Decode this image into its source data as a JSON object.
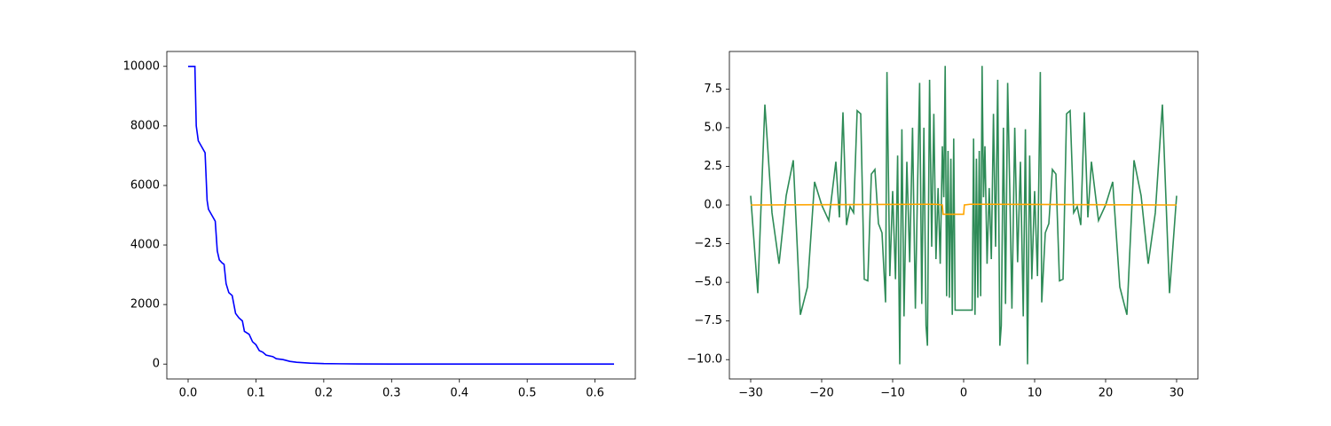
{
  "chart_data": [
    {
      "type": "line",
      "x": [
        0,
        0.01,
        0.012,
        0.015,
        0.02,
        0.025,
        0.028,
        0.03,
        0.035,
        0.04,
        0.043,
        0.046,
        0.05,
        0.053,
        0.056,
        0.06,
        0.065,
        0.07,
        0.075,
        0.08,
        0.083,
        0.09,
        0.095,
        0.1,
        0.105,
        0.11,
        0.115,
        0.125,
        0.13,
        0.14,
        0.15,
        0.16,
        0.18,
        0.2,
        0.25,
        0.3,
        0.4,
        0.5,
        0.628
      ],
      "series": [
        {
          "color": "#0000ff",
          "values": [
            10000,
            10000,
            8000,
            7500,
            7300,
            7100,
            5500,
            5200,
            5000,
            4800,
            3800,
            3500,
            3400,
            3350,
            2700,
            2400,
            2300,
            1700,
            1550,
            1450,
            1100,
            1000,
            750,
            650,
            450,
            400,
            300,
            250,
            180,
            150,
            90,
            60,
            30,
            15,
            5,
            2,
            0,
            0,
            0
          ]
        }
      ],
      "xlim": [
        -0.0314,
        0.6594
      ],
      "ylim": [
        -500,
        10500
      ],
      "xticks": [
        {
          "value": 0,
          "label": "0.0"
        },
        0.1,
        0.2,
        0.3,
        0.4,
        0.5,
        0.6
      ],
      "yticks": [
        0,
        2000,
        4000,
        6000,
        8000,
        10000
      ]
    },
    {
      "type": "line",
      "series": [
        {
          "color": "#2e8b57",
          "x": [
            -30,
            -29,
            -28,
            -27,
            -26,
            -25,
            -24,
            -23,
            -22,
            -21,
            -20,
            -19,
            -18,
            -17.5,
            -17,
            -16.5,
            -16,
            -15.5,
            -15,
            -14.5,
            -14,
            -13.5,
            -13,
            -12.5,
            -12,
            -11.5,
            -11,
            -10.8,
            -10.4,
            -10,
            -9.6,
            -9.3,
            -9,
            -8.7,
            -8.4,
            -8,
            -7.6,
            -7.2,
            -6.8,
            -6.5,
            -6.2,
            -5.9,
            -5.6,
            -5.3,
            -5.1,
            -4.8,
            -4.5,
            -4.2,
            -3.9,
            -3.6,
            -3.3,
            -3,
            -2.8,
            -2.6,
            -2.4,
            -2.2,
            -2,
            -1.8,
            -1.6,
            -1.4,
            -1.2,
            1.2,
            1.4,
            1.6,
            1.8,
            2,
            2.2,
            2.4,
            2.6,
            2.8,
            3,
            3.3,
            3.6,
            3.9,
            4.2,
            4.5,
            4.8,
            5.1,
            5.3,
            5.6,
            5.9,
            6.2,
            6.5,
            6.8,
            7.2,
            7.6,
            8,
            8.4,
            8.7,
            9,
            9.3,
            9.6,
            10,
            10.4,
            10.8,
            11,
            11.5,
            12,
            12.5,
            13,
            13.5,
            14,
            14.5,
            15,
            15.5,
            16,
            16.5,
            17,
            17.5,
            18,
            19,
            20,
            21,
            22,
            23,
            24,
            25,
            26,
            27,
            28,
            29,
            30
          ],
          "values": [
            0.6,
            -5.7,
            6.5,
            -0.5,
            -3.8,
            0.6,
            2.9,
            -7.1,
            -5.3,
            1.5,
            0,
            -1.0,
            2.8,
            -0.8,
            6.0,
            -1.3,
            -0.1,
            -0.5,
            6.1,
            5.9,
            -4.8,
            -4.9,
            2.0,
            2.3,
            -1.2,
            -1.8,
            -6.3,
            8.6,
            -4.6,
            0.9,
            -4.8,
            3.2,
            -10.3,
            4.9,
            -7.2,
            2.8,
            -3.7,
            5.0,
            -6.7,
            1.0,
            7.9,
            -6.4,
            5.0,
            -7.8,
            -9.1,
            8.1,
            -2.7,
            5.9,
            -3.5,
            1.1,
            -3.8,
            3.8,
            0.5,
            9.0,
            -5.9,
            3.5,
            -6.0,
            3.0,
            -7.1,
            4.3,
            -6.8,
            -6.8,
            4.3,
            -7.1,
            3.0,
            -6.0,
            3.5,
            -5.9,
            9.0,
            0.5,
            3.8,
            -3.8,
            1.1,
            -3.5,
            5.9,
            -2.7,
            8.1,
            -9.1,
            -7.8,
            5.0,
            -6.4,
            7.9,
            1.0,
            -6.7,
            5.0,
            -3.7,
            2.8,
            -7.2,
            4.9,
            -10.3,
            3.2,
            -4.8,
            0.9,
            -4.6,
            8.6,
            -6.3,
            -1.8,
            -1.2,
            2.3,
            2.0,
            -4.9,
            -4.8,
            5.9,
            6.1,
            -0.5,
            -0.1,
            -1.3,
            6.0,
            -0.8,
            2.8,
            -1.0,
            0,
            1.5,
            -5.3,
            -7.1,
            2.9,
            0.6,
            -3.8,
            -0.5,
            6.5,
            -5.7,
            0.6
          ]
        },
        {
          "color": "#ffa500",
          "x": [
            -30,
            -4,
            -3,
            -2.9,
            0,
            0.1,
            1,
            30
          ],
          "values": [
            0,
            0.05,
            0,
            -0.6,
            -0.6,
            0,
            0.05,
            0
          ]
        }
      ],
      "xlim": [
        -33,
        33
      ],
      "ylim": [
        -11.25,
        9.93
      ],
      "xticks": [
        {
          "value": -30,
          "label": "−30"
        },
        {
          "value": -20,
          "label": "−20"
        },
        {
          "value": -10,
          "label": "−10"
        },
        0,
        10,
        20,
        30
      ],
      "yticks": [
        {
          "value": -10,
          "label": "−10.0"
        },
        {
          "value": -7.5,
          "label": "−7.5"
        },
        {
          "value": -5,
          "label": "−5.0"
        },
        {
          "value": -2.5,
          "label": "−2.5"
        },
        {
          "value": 0,
          "label": "0.0"
        },
        2.5,
        {
          "value": 5,
          "label": "5.0"
        },
        7.5
      ]
    }
  ]
}
